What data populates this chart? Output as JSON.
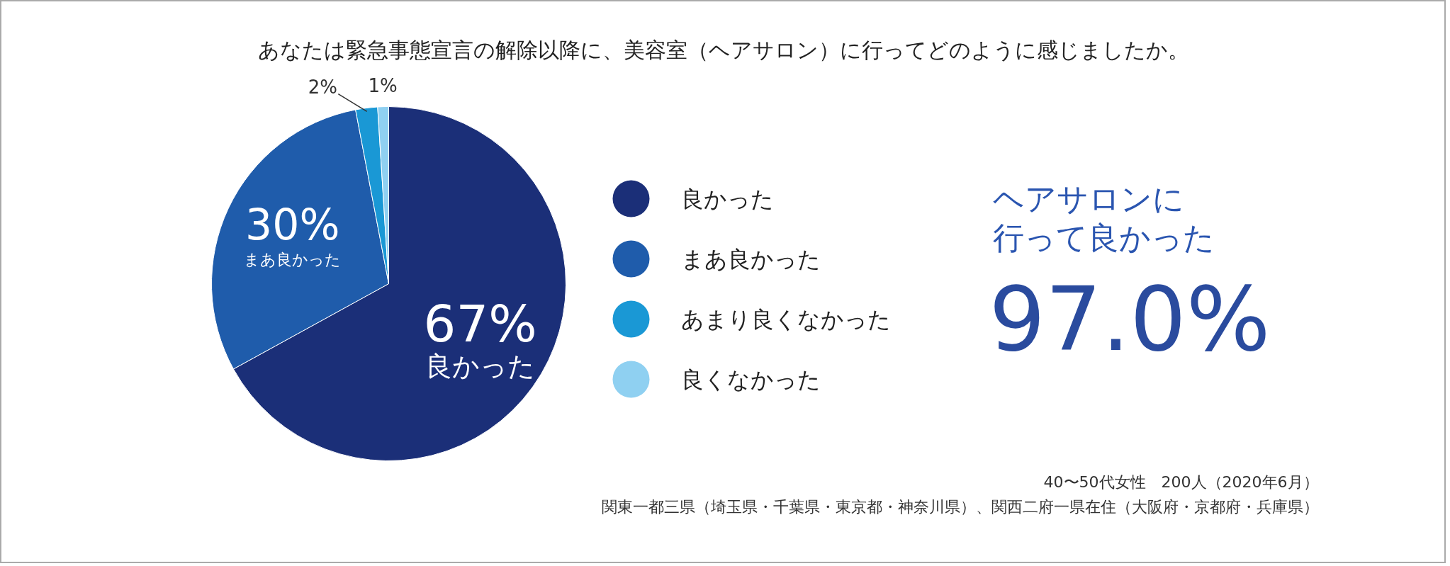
{
  "chart_data": {
    "type": "pie",
    "title": "あなたは緊急事態宣言の解除以降に、美容室（ヘアサロン）に行ってどのように感じましたか。",
    "categories": [
      "良かった",
      "まあ良かった",
      "あまり良くなかった",
      "良くなかった"
    ],
    "values": [
      67,
      30,
      2,
      1
    ],
    "colors": [
      "#1b2f78",
      "#1f5cab",
      "#1a98d5",
      "#8fd0f1"
    ],
    "value_labels": [
      "67%",
      "30%",
      "2%",
      "1%"
    ],
    "legend": "right",
    "annotations": [
      "ヘアサロンに",
      "行って良かった",
      "97.0%",
      "40〜50代女性　200人（2020年6月）",
      "関東一都三県（埼玉県・千葉県・東京都・神奈川県）、関西二府一県在住（大阪府・京都府・兵庫県）"
    ]
  }
}
